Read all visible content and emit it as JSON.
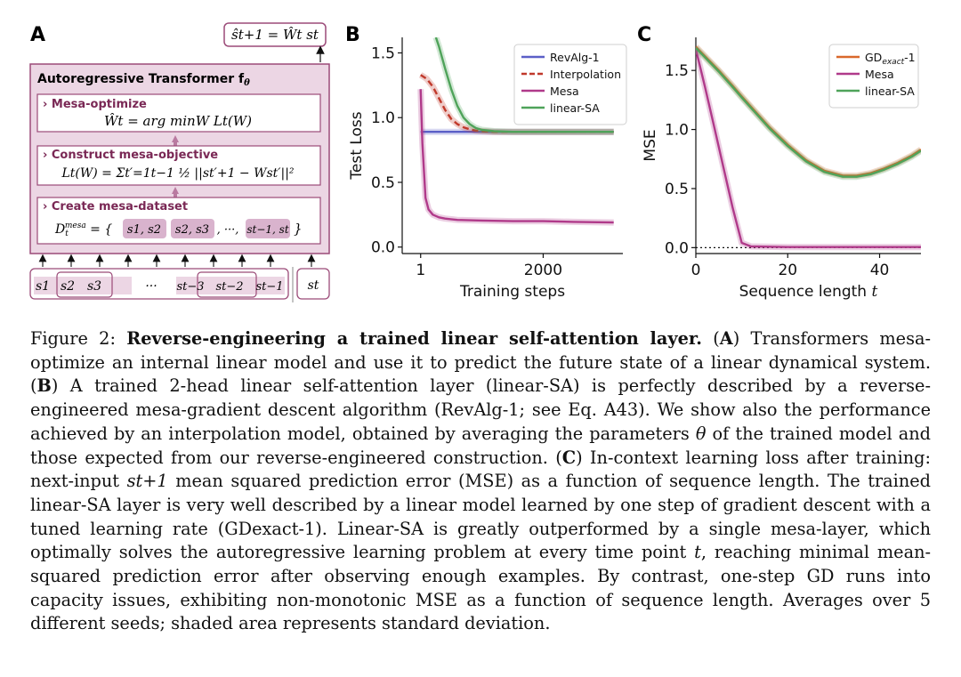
{
  "panel_a": {
    "letter": "A",
    "output_formula": "ŝ_{t+1} = Ŵ_t s_t",
    "output_formula_display": "ŝt+1 = Ŵt st",
    "transformer_title": "Autoregressive Transformer f",
    "transformer_subscript": "θ",
    "boxes": [
      {
        "title": "› Mesa-optimize",
        "formula": "Ŵt = arg minW Lt(W)"
      },
      {
        "title": "› Construct mesa-objective",
        "formula": "Lt(W) = Σt′=1t−1 ½ ||st′+1 − Wst′||²"
      },
      {
        "title": "› Create mesa-dataset",
        "formula": "Dtmesa = { s1, s2 , s2, s3 , ··· , st−1, st }"
      }
    ],
    "sequence_tokens": [
      "s1",
      "s2",
      "s3",
      "···",
      "st−3",
      "st−2",
      "st−1"
    ],
    "current_token": "st",
    "colors": {
      "border": "#9b4a78",
      "fill": "#ecd6e4",
      "token_fill": "#d9b3cd",
      "arrow": "#b97aa0"
    }
  },
  "chart_data": [
    {
      "panel": "B",
      "type": "line",
      "xlabel": "Training steps",
      "ylabel": "Test Loss",
      "xticks": [
        1,
        2000
      ],
      "yticks": [
        0.0,
        0.5,
        1.0,
        1.5
      ],
      "xlim": [
        -300,
        3300
      ],
      "ylim": [
        -0.05,
        1.62
      ],
      "legend_position": "top-right",
      "series": [
        {
          "name": "RevAlg-1",
          "color": "#5b5fc7",
          "dash": "solid",
          "x": [
            1,
            3150
          ],
          "y": [
            0.89,
            0.89
          ]
        },
        {
          "name": "Interpolation",
          "color": "#c0392b",
          "dash": "dashed",
          "x": [
            1,
            100,
            200,
            300,
            400,
            500,
            600,
            700,
            800,
            900,
            1000,
            1200,
            1500,
            3150
          ],
          "y": [
            1.33,
            1.3,
            1.24,
            1.15,
            1.06,
            0.99,
            0.95,
            0.925,
            0.91,
            0.9,
            0.895,
            0.89,
            0.89,
            0.89
          ]
        },
        {
          "name": "Mesa",
          "color": "#b03a8a",
          "dash": "solid",
          "x": [
            1,
            30,
            80,
            130,
            200,
            300,
            400,
            600,
            1000,
            1500,
            2000,
            2500,
            3150
          ],
          "y": [
            1.22,
            0.8,
            0.38,
            0.29,
            0.25,
            0.23,
            0.22,
            0.21,
            0.205,
            0.2,
            0.2,
            0.195,
            0.19
          ]
        },
        {
          "name": "linear-SA",
          "color": "#4fa35a",
          "dash": "solid",
          "x": [
            250,
            300,
            400,
            500,
            600,
            700,
            800,
            900,
            1000,
            1200,
            1500,
            2000,
            3150
          ],
          "y": [
            1.62,
            1.55,
            1.38,
            1.22,
            1.09,
            1.0,
            0.95,
            0.92,
            0.905,
            0.895,
            0.89,
            0.89,
            0.89
          ]
        }
      ]
    },
    {
      "panel": "C",
      "type": "line",
      "xlabel": "Sequence length t",
      "ylabel": "MSE",
      "xticks": [
        0,
        20,
        40
      ],
      "yticks": [
        0.0,
        0.5,
        1.0,
        1.5
      ],
      "xlim": [
        0,
        49
      ],
      "ylim": [
        -0.05,
        1.78
      ],
      "legend_position": "top-right",
      "reference_line": {
        "y": 0.0,
        "style": "dotted"
      },
      "series": [
        {
          "name": "GDexact-1",
          "color": "#d9682b",
          "x": [
            0,
            2,
            5,
            8,
            10,
            13,
            16,
            20,
            24,
            28,
            32,
            35,
            38,
            41,
            44,
            47,
            49
          ],
          "y": [
            1.7,
            1.62,
            1.5,
            1.37,
            1.28,
            1.15,
            1.02,
            0.87,
            0.74,
            0.65,
            0.61,
            0.61,
            0.63,
            0.67,
            0.72,
            0.78,
            0.83
          ]
        },
        {
          "name": "Mesa",
          "color": "#b03a8a",
          "x": [
            0,
            2,
            4,
            6,
            8,
            10,
            12,
            20,
            30,
            40,
            49
          ],
          "y": [
            1.68,
            1.36,
            1.02,
            0.68,
            0.34,
            0.04,
            0.01,
            0.005,
            0.005,
            0.005,
            0.005
          ]
        },
        {
          "name": "linear-SA",
          "color": "#4fa35a",
          "x": [
            0,
            2,
            5,
            8,
            10,
            13,
            16,
            20,
            24,
            28,
            32,
            35,
            38,
            41,
            44,
            47,
            49
          ],
          "y": [
            1.69,
            1.61,
            1.49,
            1.36,
            1.27,
            1.14,
            1.01,
            0.86,
            0.73,
            0.64,
            0.6,
            0.6,
            0.62,
            0.66,
            0.71,
            0.77,
            0.82
          ]
        }
      ]
    }
  ],
  "caption": {
    "label": "Figure 2:",
    "title": "Reverse-engineering a trained linear self-attention layer.",
    "body": [
      {
        "t": " ("
      },
      {
        "t": "A",
        "b": true
      },
      {
        "t": ") Transformers mesa-optimize an internal linear model and use it to predict the future state of a linear dynamical system. ("
      },
      {
        "t": "B",
        "b": true
      },
      {
        "t": ") A trained 2-head linear self-attention layer (linear-SA) is perfectly described by a reverse-engineered mesa-gradient descent algorithm (RevAlg-1; see Eq. A43). We show also the performance achieved by an interpolation model, obtained by averaging the parameters "
      },
      {
        "t": "θ",
        "i": true
      },
      {
        "t": " of the trained model and those expected from our reverse-engineered construction. ("
      },
      {
        "t": "C",
        "b": true
      },
      {
        "t": ") In-context learning loss after training: next-input "
      },
      {
        "t": "st+1",
        "i": true
      },
      {
        "t": " mean squared prediction error (MSE) as a function of sequence length. The trained linear-SA layer is very well described by a linear model learned by one step of gradient descent with a tuned learning rate (GDexact-1). Linear-SA is greatly outperformed by a single mesa-layer, which optimally solves the autoregressive learning problem at every time point "
      },
      {
        "t": "t",
        "i": true
      },
      {
        "t": ", reaching minimal mean-squared prediction error after observing enough examples. By contrast, one-step GD runs into capacity issues, exhibiting non-monotonic MSE as a function of sequence length. Averages over 5 different seeds; shaded area represents standard deviation."
      }
    ]
  }
}
